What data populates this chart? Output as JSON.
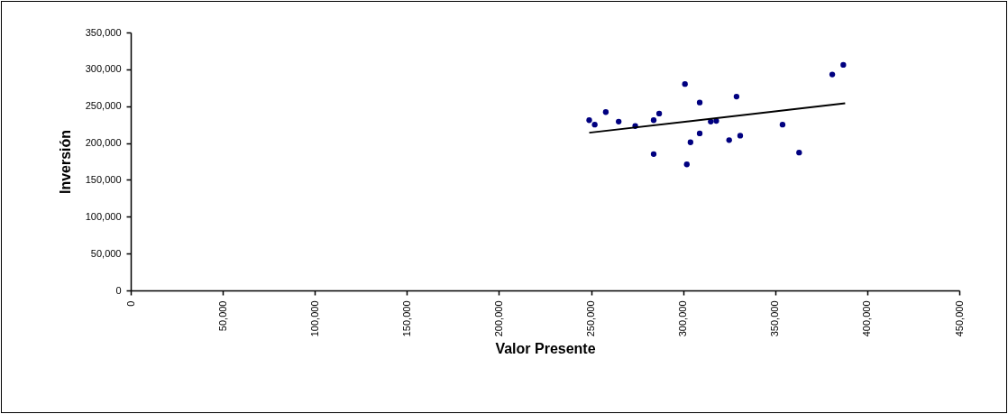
{
  "chart_data": {
    "type": "scatter",
    "xlabel": "Valor Presente",
    "ylabel": "Inversión",
    "xlim": [
      0,
      450000
    ],
    "ylim": [
      0,
      350000
    ],
    "xticks": [
      0,
      {
        "value": 50000,
        "label": "50,000"
      },
      {
        "value": 100000,
        "label": "100,000"
      },
      {
        "value": 150000,
        "label": "150,000"
      },
      {
        "value": 200000,
        "label": "200,000"
      },
      {
        "value": 250000,
        "label": "250,000"
      },
      {
        "value": 300000,
        "label": "300,000"
      },
      {
        "value": 350000,
        "label": "350,000"
      },
      {
        "value": 400000,
        "label": "400,000"
      },
      {
        "value": 450000,
        "label": "450,000"
      }
    ],
    "yticks": [
      0,
      {
        "value": 50000,
        "label": "50,000"
      },
      {
        "value": 100000,
        "label": "100,000"
      },
      {
        "value": 150000,
        "label": "150,000"
      },
      {
        "value": 200000,
        "label": "200,000"
      },
      {
        "value": 250000,
        "label": "250,000"
      },
      {
        "value": 300000,
        "label": "300,000"
      },
      {
        "value": 350000,
        "label": "350,000"
      }
    ],
    "grid": false,
    "marker": "circle",
    "series": [
      {
        "color": "#000080",
        "x": [
          249000,
          252000,
          258000,
          265000,
          274000,
          284000,
          287000,
          284000,
          301000,
          302000,
          304000,
          309000,
          309000,
          315000,
          318000,
          325000,
          329000,
          331000,
          354000,
          363000,
          381000,
          387000
        ],
        "values": [
          231000,
          225000,
          242000,
          229000,
          223000,
          231000,
          240000,
          185000,
          280000,
          171000,
          201000,
          255000,
          213000,
          229000,
          230000,
          204000,
          263000,
          210000,
          225000,
          187000,
          293000,
          306000
        ]
      },
      {
        "type": "line",
        "color": "#000000",
        "line_style": "solid",
        "marker": "none",
        "x": [
          249000,
          388000
        ],
        "values": [
          214000,
          254000
        ]
      }
    ]
  }
}
